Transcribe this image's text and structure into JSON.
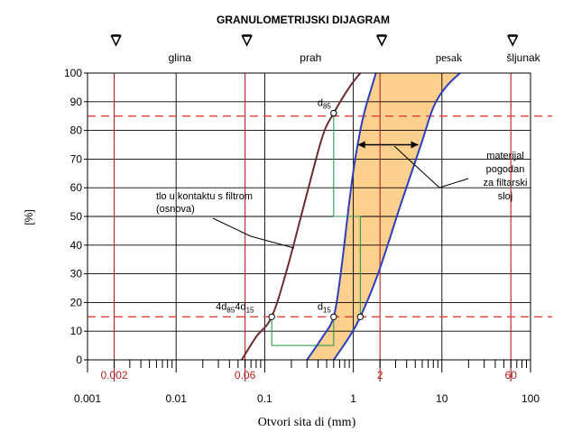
{
  "chart_data": {
    "type": "line",
    "title": "GRANULOMETRIJSKI DIJAGRAM",
    "xlabel": "Otvori sita di (mm)",
    "ylabel": "[%]",
    "xscale": "log",
    "xlim": [
      0.001,
      100
    ],
    "ylim": [
      0,
      100
    ],
    "grid": true,
    "x_ticks": [
      {
        "value": 0.001,
        "label": "0.001"
      },
      {
        "value": 0.01,
        "label": "0.01"
      },
      {
        "value": 0.1,
        "label": "0.1"
      },
      {
        "value": 1,
        "label": "1"
      },
      {
        "value": 10,
        "label": "10"
      },
      {
        "value": 100,
        "label": "100"
      }
    ],
    "y_ticks": [
      {
        "value": 0,
        "label": "0"
      },
      {
        "value": 10,
        "label": "10"
      },
      {
        "value": 20,
        "label": "20"
      },
      {
        "value": 30,
        "label": "30"
      },
      {
        "value": 40,
        "label": "40"
      },
      {
        "value": 50,
        "label": "50"
      },
      {
        "value": 60,
        "label": "60"
      },
      {
        "value": 70,
        "label": "70"
      },
      {
        "value": 80,
        "label": "80"
      },
      {
        "value": 90,
        "label": "90"
      },
      {
        "value": 100,
        "label": "100"
      }
    ],
    "boundaries": [
      {
        "value": 0.002,
        "label": "0.002"
      },
      {
        "value": 0.06,
        "label": "0.06"
      },
      {
        "value": 2,
        "label": "2"
      },
      {
        "value": 60,
        "label": "60"
      }
    ],
    "soil_zones": [
      {
        "label": "glina",
        "at": 0.011,
        "font": "sans"
      },
      {
        "label": "prah",
        "at": 0.33,
        "font": "sans"
      },
      {
        "label": "pesak",
        "at": 12,
        "font": "serif"
      },
      {
        "label": "šljunak",
        "at": 110,
        "font": "sans"
      }
    ],
    "reference_levels": [
      {
        "value": 15,
        "style": "dashed",
        "color": "#e0403a"
      },
      {
        "value": 85,
        "style": "dashed",
        "color": "#e0403a"
      }
    ],
    "series": [
      {
        "role": "base-soil",
        "color": "#6b2d2d",
        "points": [
          [
            0.055,
            0
          ],
          [
            0.08,
            8
          ],
          [
            0.12,
            15
          ],
          [
            0.18,
            32
          ],
          [
            0.3,
            58
          ],
          [
            0.45,
            78
          ],
          [
            0.6,
            86
          ],
          [
            0.9,
            95
          ],
          [
            1.2,
            100
          ]
        ]
      },
      {
        "role": "filter-band-fine",
        "color": "#2b3fbf",
        "points": [
          [
            0.3,
            0
          ],
          [
            0.45,
            8
          ],
          [
            0.6,
            15
          ],
          [
            0.72,
            30
          ],
          [
            0.9,
            55
          ],
          [
            1.05,
            70
          ],
          [
            1.3,
            85
          ],
          [
            1.8,
            100
          ]
        ]
      },
      {
        "role": "filter-band-coarse",
        "color": "#2b3fbf",
        "points": [
          [
            0.6,
            0
          ],
          [
            0.9,
            8
          ],
          [
            1.2,
            15
          ],
          [
            1.9,
            30
          ],
          [
            3.5,
            55
          ],
          [
            5.8,
            75
          ],
          [
            8,
            88
          ],
          [
            11,
            95
          ],
          [
            16,
            100
          ]
        ]
      }
    ],
    "band_fill": "#fdd08e",
    "annotation_points": [
      {
        "x": 0.6,
        "y": 86,
        "label_base": "d",
        "label_sub": "85"
      },
      {
        "x": 0.6,
        "y": 15,
        "label_base": "d",
        "label_sub": "15"
      },
      {
        "x": 0.12,
        "y": 15
      },
      {
        "x": 1.2,
        "y": 15
      }
    ],
    "green_guides": [
      [
        [
          0.6,
          86
        ],
        [
          0.6,
          50
        ],
        [
          1.2,
          50
        ],
        [
          1.2,
          15
        ]
      ],
      [
        [
          0.12,
          15
        ],
        [
          0.12,
          5
        ],
        [
          0.6,
          5
        ],
        [
          0.6,
          15
        ]
      ]
    ],
    "text_annotations": {
      "left_pair": [
        {
          "base": "4d",
          "sub": "85"
        },
        {
          "base": "4d",
          "sub": "15"
        }
      ],
      "base_soil_lines": [
        "tlo u kontaktu s filtrom",
        "(osnova)"
      ],
      "filter_lines": [
        "materijal",
        "pogodan",
        "za filtarski",
        "sloj"
      ]
    }
  }
}
